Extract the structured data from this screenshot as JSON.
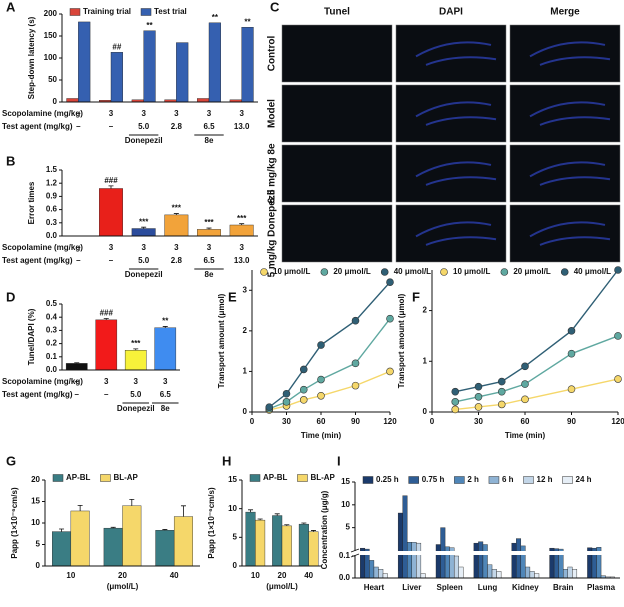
{
  "chart_data": [
    {
      "type": "bar",
      "panel": "A",
      "ylabel": "Step-down latency (s)",
      "ylim": [
        0,
        200
      ],
      "yticks": [
        0,
        50,
        100,
        150,
        200
      ],
      "series": [
        {
          "name": "Training trial",
          "color": "#d9453a",
          "values": [
            8,
            4,
            5,
            5,
            8,
            5
          ]
        },
        {
          "name": "Test trial",
          "color": "#3560b0",
          "values": [
            182,
            113,
            162,
            135,
            180,
            170
          ],
          "annotations": [
            null,
            "##",
            "**",
            null,
            "**",
            "**"
          ]
        }
      ],
      "rows": [
        {
          "label": "Scopolamine (mg/kg)",
          "cells": [
            "–",
            "3",
            "3",
            "3",
            "3",
            "3"
          ]
        },
        {
          "label": "Test agent (mg/kg)",
          "cells": [
            "–",
            "–",
            "5.0",
            "2.8",
            "6.5",
            "13.0"
          ]
        }
      ],
      "group_labels": [
        null,
        null,
        "Donepezil",
        null,
        "8e",
        null
      ]
    },
    {
      "type": "bar",
      "panel": "B",
      "ylabel": "Error times",
      "ylim": [
        0,
        1.5
      ],
      "yticks": [
        {
          "value": 0,
          "label": "0.0"
        },
        0.3,
        0.6,
        0.9,
        1.2,
        1.5
      ],
      "values": [
        0,
        1.08,
        0.17,
        0.48,
        0.15,
        0.25
      ],
      "errors": [
        0,
        0.06,
        0.03,
        0.03,
        0.03,
        0.03
      ],
      "colors": [
        "#111111",
        "#e8201a",
        "#2b4c9c",
        "#f2a33a",
        "#f2a33a",
        "#f2a33a"
      ],
      "annotations": [
        null,
        "###",
        "***",
        "***",
        "***",
        "***"
      ],
      "rows": [
        {
          "label": "Scopolamine (mg/kg)",
          "cells": [
            "–",
            "3",
            "3",
            "3",
            "3",
            "3"
          ]
        },
        {
          "label": "Test agent (mg/kg)",
          "cells": [
            "–",
            "–",
            "5.0",
            "2.8",
            "6.5",
            "13.0"
          ]
        }
      ],
      "group_labels": [
        null,
        null,
        "Donepezil",
        null,
        "8e",
        null
      ]
    },
    {
      "type": "image",
      "panel": "C",
      "columns": [
        "Tunel",
        "DAPI",
        "Merge"
      ],
      "rows": [
        "Control",
        "Model",
        "6.5 mg/kg 8e",
        "5 mg/kg Donepezil"
      ]
    },
    {
      "type": "bar",
      "panel": "D",
      "ylabel": "Tunel/DAPI (%)",
      "ylim": [
        0,
        0.5
      ],
      "yticks": [
        {
          "value": 0,
          "label": "0.0"
        },
        0.1,
        0.2,
        0.3,
        0.4,
        0.5
      ],
      "values": [
        0.05,
        0.38,
        0.15,
        0.32
      ],
      "errors": [
        0.005,
        0.01,
        0.01,
        0.01
      ],
      "colors": [
        "#111111",
        "#f21a1a",
        "#f7f23a",
        "#3f8cf0"
      ],
      "annotations": [
        null,
        "###",
        "***",
        "**"
      ],
      "rows": [
        {
          "label": "Scopolamine (mg/kg)",
          "cells": [
            "–",
            "3",
            "3",
            "3"
          ]
        },
        {
          "label": "Test agent (mg/kg)",
          "cells": [
            "–",
            "–",
            "5.0",
            "6.5"
          ]
        }
      ],
      "group_labels": [
        null,
        null,
        "Donepezil",
        "8e"
      ]
    },
    {
      "type": "line",
      "panel": "E",
      "xlabel": "Time (min)",
      "ylabel": "Transport amount (μmol)",
      "x": [
        15,
        30,
        45,
        60,
        90,
        120
      ],
      "xlim": [
        0,
        120
      ],
      "xticks": [
        0,
        30,
        60,
        90,
        120
      ],
      "ylim": [
        0,
        3.5
      ],
      "yticks": [
        0,
        1,
        2,
        3
      ],
      "series": [
        {
          "name": "10 μmol/L",
          "color": "#f5d76a",
          "values": [
            0.05,
            0.15,
            0.3,
            0.4,
            0.65,
            1.0
          ]
        },
        {
          "name": "20 μmol/L",
          "color": "#5fa8a0",
          "values": [
            0.08,
            0.25,
            0.55,
            0.8,
            1.2,
            2.3
          ]
        },
        {
          "name": "40 μmol/L",
          "color": "#2f5f75",
          "values": [
            0.12,
            0.45,
            1.05,
            1.65,
            2.25,
            3.2
          ]
        }
      ]
    },
    {
      "type": "line",
      "panel": "F",
      "xlabel": "Time (min)",
      "ylabel": "Transport amount (μmol)",
      "x": [
        15,
        30,
        45,
        60,
        90,
        120
      ],
      "xlim": [
        0,
        120
      ],
      "xticks": [
        0,
        30,
        60,
        90,
        120
      ],
      "ylim": [
        0,
        2.8
      ],
      "yticks": [
        0,
        1,
        2
      ],
      "series": [
        {
          "name": "10 μmol/L",
          "color": "#f5d76a",
          "values": [
            0.05,
            0.1,
            0.15,
            0.25,
            0.45,
            0.65
          ]
        },
        {
          "name": "20 μmol/L",
          "color": "#5fa8a0",
          "values": [
            0.2,
            0.3,
            0.4,
            0.55,
            1.15,
            1.5
          ]
        },
        {
          "name": "40 μmol/L",
          "color": "#2f5f75",
          "values": [
            0.4,
            0.5,
            0.6,
            0.9,
            1.6,
            2.8
          ]
        }
      ]
    },
    {
      "type": "bar",
      "panel": "G",
      "ylabel": "Papp (1×10⁻⁶cm/s)",
      "xlabel": "(μmol/L)",
      "categories": [
        "10",
        "20",
        "40"
      ],
      "ylim": [
        0,
        20
      ],
      "yticks": [
        0,
        5,
        10,
        15,
        20
      ],
      "series": [
        {
          "name": "AP-BL",
          "color": "#3a7d84",
          "values": [
            8.0,
            8.8,
            8.3
          ],
          "errors": [
            0.6,
            0.2,
            0.2
          ]
        },
        {
          "name": "BL-AP",
          "color": "#f5d76a",
          "values": [
            12.8,
            14.0,
            11.5
          ],
          "errors": [
            1.3,
            1.5,
            2.5
          ]
        }
      ]
    },
    {
      "type": "bar",
      "panel": "H",
      "ylabel": "Papp (1×10⁻⁶cm/s)",
      "xlabel": "(μmol/L)",
      "categories": [
        "10",
        "20",
        "40"
      ],
      "ylim": [
        0,
        15
      ],
      "yticks": [
        0,
        5,
        10,
        15
      ],
      "series": [
        {
          "name": "AP-BL",
          "color": "#3a7d84",
          "values": [
            9.4,
            8.8,
            7.3
          ],
          "errors": [
            0.4,
            0.3,
            0.2
          ]
        },
        {
          "name": "BL-AP",
          "color": "#f5d76a",
          "values": [
            8.0,
            7.0,
            6.0
          ],
          "errors": [
            0.2,
            0.2,
            0.2
          ]
        }
      ]
    },
    {
      "type": "bar",
      "panel": "I",
      "ylabel": "Concentration (μg/g)",
      "categories": [
        "Heart",
        "Liver",
        "Spleen",
        "Lung",
        "Kidney",
        "Brain",
        "Plasma"
      ],
      "ylim": [
        0,
        15
      ],
      "ybreak": 0.1,
      "yticks": [
        {
          "value": 0,
          "label": "0.0"
        },
        0.1,
        5,
        10,
        15
      ],
      "series": [
        {
          "name": "0.25 h",
          "color": "#1b3a6b",
          "values": [
            0.5,
            8.2,
            1.3,
            1.6,
            1.6,
            0.5,
            0.6
          ]
        },
        {
          "name": "0.75 h",
          "color": "#2e5d95",
          "values": [
            0.3,
            12.0,
            5.0,
            1.9,
            2.6,
            0.4,
            0.5
          ]
        },
        {
          "name": "2 h",
          "color": "#4f86b8",
          "values": [
            0.08,
            1.8,
            0.8,
            1.3,
            1.0,
            0.3,
            0.7
          ]
        },
        {
          "name": "6 h",
          "color": "#8fb3d4",
          "values": [
            0.05,
            1.8,
            0.6,
            0.06,
            0.05,
            0.04,
            0.01
          ]
        },
        {
          "name": "12 h",
          "color": "#c3d6e8",
          "values": [
            0.04,
            1.6,
            0.1,
            0.04,
            0.03,
            0.05,
            0.005
          ]
        },
        {
          "name": "24 h",
          "color": "#e6eef6",
          "values": [
            0.02,
            0.02,
            0.05,
            0.03,
            0.02,
            0.04,
            0.005
          ]
        }
      ]
    }
  ]
}
